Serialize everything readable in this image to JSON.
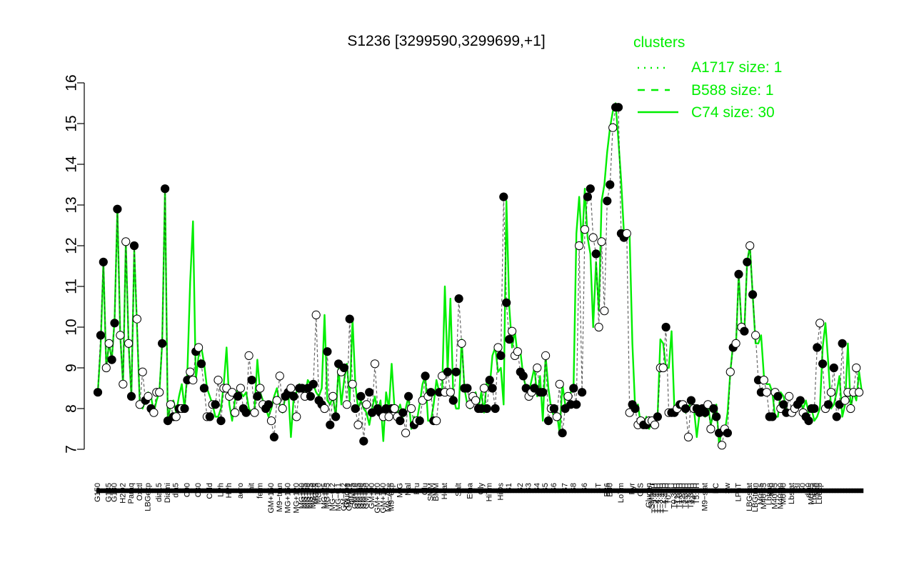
{
  "chart_data": {
    "type": "line",
    "title": "S1236 [3299590,3299699,+1]",
    "xlabel": "",
    "ylabel": "",
    "ylim": [
      7,
      16
    ],
    "yticks": [
      7,
      8,
      9,
      10,
      11,
      12,
      13,
      14,
      15,
      16
    ],
    "grid": false,
    "legend": {
      "title": "clusters",
      "placement": "top-right",
      "color": "#00ee00",
      "entries": [
        {
          "label": "A1717 size: 1",
          "style": "dotted"
        },
        {
          "label": "B588 size: 1",
          "style": "dashed"
        },
        {
          "label": "C74 size: 30",
          "style": "solid"
        }
      ]
    },
    "colors": {
      "line": "#00ee00",
      "axis": "#000000",
      "point_dark": "#000000",
      "point_light": "#ffffff"
    },
    "x_tick_labels": [
      {
        "i": 0,
        "label": "G150"
      },
      {
        "i": 4,
        "label": "G135"
      },
      {
        "i": 6,
        "label": "G180"
      },
      {
        "i": 9,
        "label": "H2O2"
      },
      {
        "i": 12,
        "label": "Paraq"
      },
      {
        "i": 15,
        "label": "Oxctl"
      },
      {
        "i": 18,
        "label": "LBGexp"
      },
      {
        "i": 22,
        "label": "dia15"
      },
      {
        "i": 25,
        "label": "Diami"
      },
      {
        "i": 28,
        "label": "dia5"
      },
      {
        "i": 32,
        "label": "C90"
      },
      {
        "i": 36,
        "label": "C30"
      },
      {
        "i": 40,
        "label": "Cold"
      },
      {
        "i": 44,
        "label": "LPh"
      },
      {
        "i": 47,
        "label": "HPh"
      },
      {
        "i": 51,
        "label": "aero"
      },
      {
        "i": 55,
        "label": "nit"
      },
      {
        "i": 58,
        "label": "ferm"
      },
      {
        "i": 62,
        "label": "GM+150"
      },
      {
        "i": 65,
        "label": "M9−tran"
      },
      {
        "i": 68,
        "label": "MG+150"
      },
      {
        "i": 71,
        "label": "MG+120"
      },
      {
        "i": 73,
        "label": "MG+60"
      },
      {
        "i": 74,
        "label": "MG+45"
      },
      {
        "i": 75,
        "label": "MG+30"
      },
      {
        "i": 76,
        "label": "MG+15"
      },
      {
        "i": 77,
        "label": "MG+10"
      },
      {
        "i": 78,
        "label": "MG+5"
      },
      {
        "i": 79,
        "label": "MG+0"
      },
      {
        "i": 81,
        "label": "MG+25"
      },
      {
        "i": 82,
        "label": "MG+45"
      },
      {
        "i": 84,
        "label": "MG−0.2"
      },
      {
        "i": 86,
        "label": "MG−0.1"
      },
      {
        "i": 88,
        "label": "GM−0.2"
      },
      {
        "i": 89,
        "label": "Glucon"
      },
      {
        "i": 90,
        "label": "GM−0.1"
      },
      {
        "i": 91,
        "label": "GM+5"
      },
      {
        "i": 92,
        "label": "GM+10"
      },
      {
        "i": 93,
        "label": "GM+15"
      },
      {
        "i": 94,
        "label": "GM+30"
      },
      {
        "i": 95,
        "label": "GM+45"
      },
      {
        "i": 96,
        "label": "GM+60"
      },
      {
        "i": 98,
        "label": "GM+90"
      },
      {
        "i": 100,
        "label": "GM+120"
      },
      {
        "i": 102,
        "label": "GM+150"
      },
      {
        "i": 104,
        "label": "M9−Ace"
      },
      {
        "i": 105,
        "label": "M9−exp"
      },
      {
        "i": 108,
        "label": "M/G"
      },
      {
        "i": 111,
        "label": "Mal"
      },
      {
        "i": 114,
        "label": "Fru"
      },
      {
        "i": 117,
        "label": "Glu"
      },
      {
        "i": 119,
        "label": "SMM"
      },
      {
        "i": 121,
        "label": "BMM"
      },
      {
        "i": 124,
        "label": "Heat"
      },
      {
        "i": 129,
        "label": "Salt"
      },
      {
        "i": 133,
        "label": "Etha"
      },
      {
        "i": 137,
        "label": "Gly"
      },
      {
        "i": 140,
        "label": "HiTm"
      },
      {
        "i": 144,
        "label": "HiOs"
      },
      {
        "i": 147,
        "label": "S1"
      },
      {
        "i": 151,
        "label": "S2"
      },
      {
        "i": 154,
        "label": "S3"
      },
      {
        "i": 157,
        "label": "S4"
      },
      {
        "i": 160,
        "label": "S5"
      },
      {
        "i": 163,
        "label": "S6"
      },
      {
        "i": 167,
        "label": "S7"
      },
      {
        "i": 170,
        "label": "S8"
      },
      {
        "i": 174,
        "label": "S6"
      },
      {
        "i": 179,
        "label": "BT"
      },
      {
        "i": 182,
        "label": "B36"
      },
      {
        "i": 183,
        "label": "B60"
      },
      {
        "i": 187,
        "label": "LoTm"
      },
      {
        "i": 191,
        "label": "Pyr"
      },
      {
        "i": 194,
        "label": "G/S"
      },
      {
        "i": 197,
        "label": "Glucon"
      },
      {
        "i": 198,
        "label": "SMMPr"
      },
      {
        "i": 199,
        "label": "T−5.40H"
      },
      {
        "i": 200,
        "label": "T−4.40H"
      },
      {
        "i": 201,
        "label": "T−3.40H"
      },
      {
        "i": 202,
        "label": "T−2.40H"
      },
      {
        "i": 203,
        "label": "T−1.40H"
      },
      {
        "i": 204,
        "label": "T0.0H"
      },
      {
        "i": 206,
        "label": "T0.30H"
      },
      {
        "i": 207,
        "label": "T1.0H"
      },
      {
        "i": 208,
        "label": "T1.30H"
      },
      {
        "i": 209,
        "label": "T2.0H"
      },
      {
        "i": 210,
        "label": "T2.30H"
      },
      {
        "i": 211,
        "label": "T3.0H"
      },
      {
        "i": 212,
        "label": "T3.30H"
      },
      {
        "i": 213,
        "label": "T4.0H"
      },
      {
        "i": 214,
        "label": "T5.0H"
      },
      {
        "i": 217,
        "label": "M9−stat"
      },
      {
        "i": 221,
        "label": "BC"
      },
      {
        "i": 225,
        "label": "Sw"
      },
      {
        "i": 229,
        "label": "LPhT"
      },
      {
        "i": 233,
        "label": "LBGstat"
      },
      {
        "i": 235,
        "label": "LBGtran"
      },
      {
        "i": 237,
        "label": "M0t45"
      },
      {
        "i": 238,
        "label": "M40t45"
      },
      {
        "i": 240,
        "label": "Lbtran"
      },
      {
        "i": 241,
        "label": "Mt0"
      },
      {
        "i": 242,
        "label": "M40t45"
      },
      {
        "i": 244,
        "label": "M40t90"
      },
      {
        "i": 245,
        "label": "M0t90"
      },
      {
        "i": 248,
        "label": "Lbstat"
      },
      {
        "i": 250,
        "label": "BI"
      },
      {
        "i": 252,
        "label": "S0"
      },
      {
        "i": 254,
        "label": "dia0"
      },
      {
        "i": 255,
        "label": "M0t45"
      },
      {
        "i": 256,
        "label": "Lbexp"
      },
      {
        "i": 257,
        "label": "Mt0"
      },
      {
        "i": 258,
        "label": "Lbexp"
      }
    ],
    "series": [
      {
        "name": "C74 size: 30",
        "style": "solid",
        "values": [
          8.4,
          9.5,
          11.6,
          9.0,
          9.6,
          9.2,
          10.2,
          12.9,
          9.8,
          8.6,
          12.1,
          9.6,
          8.3,
          11.9,
          10.0,
          8.1,
          8.0,
          8.2,
          8.4,
          8.3,
          7.9,
          8.2,
          8.4,
          9.6,
          13.4,
          7.7,
          8.1,
          8.2,
          7.9,
          8.3,
          8.6,
          8.0,
          8.9,
          11.1,
          12.6,
          8.7,
          9.3,
          9.5,
          9.1,
          8.5,
          8.3,
          8.1,
          7.8,
          7.8,
          8.0,
          8.6,
          9.5,
          8.1,
          7.7,
          8.2,
          8.5,
          8.4,
          8.3,
          8.4,
          8.0,
          7.9,
          8.0,
          9.2,
          8.4,
          8.2,
          8.0,
          7.8,
          8.0,
          8.3,
          8.5,
          8.1,
          7.9,
          8.3,
          8.5,
          7.3,
          8.3,
          8.4,
          8.6,
          8.5,
          8.3,
          8.7,
          8.6,
          8.6,
          8.4,
          8.3,
          8.5,
          10.3,
          8.2,
          8.1,
          8.3,
          7.8,
          9.0,
          8.1,
          8.7,
          9.1,
          8.2,
          10.2,
          8.6,
          8.0,
          8.2,
          8.0,
          7.9,
          7.6,
          8.0,
          8.3,
          7.9,
          8.2,
          7.2,
          8.4,
          8.0,
          9.1,
          8.0,
          7.9,
          8.1,
          7.8,
          8.0,
          8.3,
          7.5,
          7.8,
          7.7,
          8.1,
          8.6,
          8.8,
          7.7,
          7.7,
          8.1,
          8.7,
          8.4,
          8.4,
          11.0,
          8.9,
          10.7,
          8.3,
          8.0,
          8.0,
          9.7,
          8.5,
          8.1,
          8.0,
          8.3,
          8.4,
          8.0,
          8.4,
          7.9,
          8.7,
          8.5,
          9.3,
          9.5,
          8.9,
          9.0,
          8.1,
          13.1,
          10.5,
          9.5,
          9.9,
          9.3,
          9.4,
          8.8,
          8.5,
          8.4,
          8.7,
          9.0,
          8.3,
          8.8,
          7.7,
          9.3,
          8.5,
          8.0,
          7.8,
          7.9,
          7.4,
          8.6,
          8.1,
          8.0,
          8.4,
          8.6,
          12.3,
          13.2,
          12.0,
          13.4,
          12.2,
          11.8,
          10.0,
          11.6,
          10.4,
          13.1,
          13.5,
          14.3,
          14.9,
          15.3,
          15.5,
          14.6,
          13.6,
          12.3,
          12.2,
          12.3,
          9.6,
          8.0,
          8.1,
          7.6,
          7.6,
          7.8,
          7.5,
          7.7,
          7.6,
          7.8,
          9.7,
          9.6,
          9.0,
          9.0,
          9.9,
          8.0,
          7.9,
          8.1,
          8.0,
          7.9,
          8.0,
          8.2,
          8.0,
          7.3,
          7.9,
          7.9,
          7.8,
          8.1,
          7.6,
          7.9,
          8.1,
          7.1,
          7.5,
          7.4,
          7.9,
          8.9,
          9.6,
          9.5,
          11.3,
          10.0,
          9.9,
          11.6,
          12.0,
          10.8,
          9.6,
          9.6,
          9.8,
          8.8,
          8.6,
          8.6,
          8.4,
          7.8,
          7.8,
          8.4,
          8.3,
          8.0,
          7.9,
          8.0,
          7.9,
          8.1,
          8.2,
          8.0,
          8.2,
          7.9,
          8.0,
          7.7,
          7.8,
          8.0,
          9.5,
          10.1,
          9.1,
          8.0,
          8.1,
          8.4,
          8.8,
          7.8,
          8.1,
          9.6,
          8.0,
          8.4,
          8.2,
          8.9,
          8.4
        ]
      }
    ],
    "points": {
      "values": [
        8.4,
        9.8,
        11.6,
        9.0,
        9.6,
        9.2,
        10.1,
        12.9,
        9.8,
        8.6,
        12.1,
        9.6,
        8.3,
        12.0,
        10.2,
        8.1,
        8.9,
        8.2,
        8.3,
        8.0,
        7.9,
        8.4,
        8.4,
        9.6,
        13.4,
        7.7,
        8.1,
        7.8,
        7.8,
        8.0,
        8.0,
        8.0,
        8.7,
        8.9,
        8.7,
        9.4,
        9.5,
        9.1,
        8.5,
        7.8,
        7.8,
        8.1,
        8.1,
        8.7,
        7.7,
        8.5,
        8.5,
        8.3,
        8.4,
        7.9,
        8.3,
        8.5,
        8.0,
        7.9,
        9.3,
        8.7,
        7.9,
        8.3,
        8.5,
        8.1,
        8.0,
        8.1,
        7.7,
        7.3,
        8.2,
        8.8,
        8.0,
        8.3,
        8.4,
        8.5,
        8.3,
        7.8,
        8.5,
        8.5,
        8.3,
        8.5,
        8.3,
        8.6,
        10.3,
        8.2,
        8.1,
        8.0,
        9.4,
        7.6,
        8.3,
        7.8,
        9.1,
        8.9,
        9.0,
        8.1,
        10.2,
        8.6,
        8.0,
        7.6,
        8.3,
        7.2,
        8.1,
        8.4,
        7.9,
        9.1,
        8.0,
        7.9,
        7.8,
        8.0,
        7.8,
        8.0,
        8.0,
        7.8,
        7.7,
        7.9,
        7.4,
        8.3,
        8.0,
        7.6,
        7.7,
        7.7,
        8.2,
        8.8,
        8.3,
        8.4,
        7.7,
        7.7,
        8.4,
        8.8,
        8.4,
        8.9,
        8.4,
        8.2,
        8.9,
        10.7,
        9.6,
        8.5,
        8.5,
        8.1,
        8.3,
        8.2,
        8.0,
        8.0,
        8.5,
        8.0,
        8.7,
        8.5,
        8.0,
        9.5,
        9.3,
        13.2,
        10.6,
        9.7,
        9.9,
        9.3,
        9.4,
        8.9,
        8.8,
        8.5,
        8.3,
        8.4,
        8.5,
        9.0,
        8.4,
        8.4,
        9.3,
        7.7,
        8.0,
        8.0,
        7.8,
        8.6,
        7.4,
        8.0,
        8.3,
        8.1,
        8.5,
        8.1,
        12.0,
        8.4,
        12.4,
        13.2,
        13.4,
        12.2,
        11.8,
        10.0,
        12.1,
        10.4,
        13.1,
        13.5,
        14.9,
        15.4,
        15.4,
        12.3,
        12.2,
        12.3,
        7.9,
        8.1,
        8.0,
        7.6,
        7.7,
        7.6,
        7.6,
        7.7,
        7.7,
        7.6,
        7.8,
        9.0,
        9.0,
        10.0,
        7.9,
        7.9,
        7.9,
        8.0,
        8.1,
        8.1,
        8.0,
        7.3,
        8.2,
        8.0,
        8.0,
        7.9,
        8.0,
        7.9,
        8.1,
        7.5,
        8.0,
        7.8,
        7.4,
        7.1,
        7.5,
        7.4,
        8.9,
        9.5,
        9.6,
        11.3,
        10.0,
        9.9,
        11.6,
        12.0,
        10.8,
        9.8,
        8.7,
        8.4,
        8.7,
        8.4,
        7.8,
        7.8,
        8.4,
        8.3,
        8.0,
        8.1,
        7.9,
        8.3,
        7.9,
        8.0,
        8.1,
        8.2,
        7.9,
        7.8,
        7.7,
        8.0,
        8.0,
        9.5,
        10.1,
        9.1,
        8.0,
        8.1,
        8.4,
        9.0,
        7.8,
        8.1,
        9.6,
        8.2,
        8.4,
        8.0,
        8.4,
        9.0,
        8.4
      ],
      "filled": [
        1,
        1,
        1,
        0,
        0,
        1,
        1,
        1,
        0,
        0,
        0,
        0,
        1,
        1,
        0,
        0,
        0,
        1,
        0,
        1,
        0,
        0,
        0,
        1,
        1,
        1,
        0,
        1,
        0,
        1,
        0,
        1,
        1,
        0,
        0,
        1,
        0,
        1,
        1,
        0,
        1,
        0,
        1,
        0,
        1,
        0,
        0,
        0,
        0,
        0,
        1,
        0,
        1,
        1,
        0,
        1,
        0,
        1,
        0,
        0,
        1,
        1,
        0,
        1,
        0,
        0,
        0,
        1,
        1,
        0,
        1,
        0,
        1,
        1,
        0,
        1,
        1,
        1,
        0,
        1,
        1,
        0,
        1,
        1,
        0,
        1,
        1,
        0,
        1,
        0,
        1,
        0,
        1,
        0,
        1,
        1,
        0,
        1,
        1,
        0,
        1,
        1,
        0,
        1,
        0,
        1,
        0,
        0,
        1,
        1,
        0,
        1,
        0,
        1,
        0,
        1,
        0,
        1,
        0,
        1,
        1,
        0,
        1,
        0,
        0,
        1,
        0,
        1,
        1,
        1,
        0,
        1,
        1,
        0,
        0,
        0,
        1,
        1,
        0,
        1,
        1,
        1,
        1,
        0,
        1,
        1,
        1,
        1,
        0,
        0,
        0,
        1,
        1,
        1,
        0,
        0,
        1,
        0,
        1,
        1,
        0,
        1,
        0,
        1,
        0,
        0,
        1,
        1,
        0,
        1,
        1,
        1,
        0,
        1,
        0,
        1,
        1,
        0,
        1,
        0,
        0,
        0,
        1,
        1,
        0,
        1,
        1,
        1,
        1,
        0,
        0,
        1,
        1,
        0,
        0,
        1,
        1,
        0,
        0,
        0,
        1,
        0,
        0,
        1,
        0,
        1,
        1,
        0,
        1,
        0,
        1,
        0,
        1,
        0,
        1,
        1,
        1,
        1,
        0,
        0,
        1,
        1,
        1,
        0,
        0,
        1,
        0,
        1,
        0,
        1,
        0,
        1,
        1,
        0,
        1,
        0,
        1,
        1,
        0,
        0,
        1,
        1,
        0,
        1,
        0,
        1,
        1,
        0,
        0,
        0,
        1,
        1,
        0,
        1,
        1,
        1,
        1,
        1,
        0,
        1,
        0,
        1,
        0,
        1,
        1,
        1,
        1
      ]
    }
  }
}
